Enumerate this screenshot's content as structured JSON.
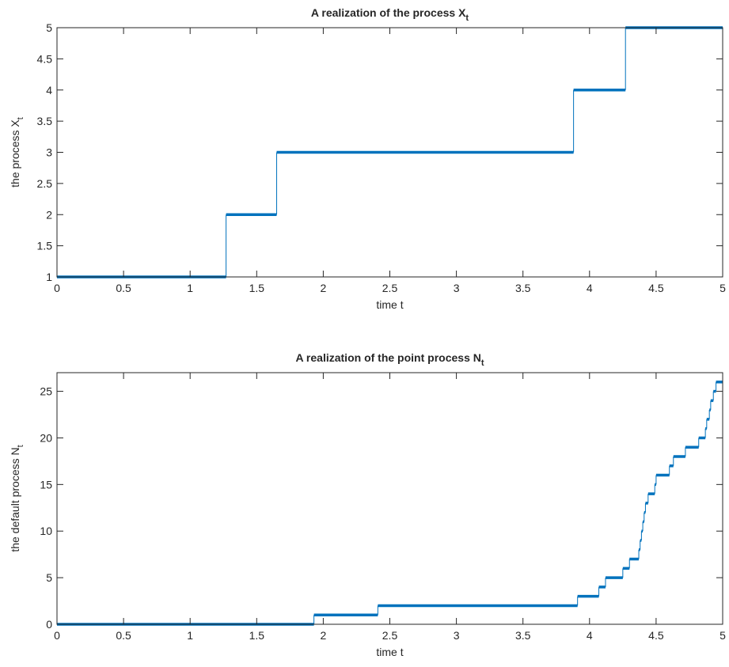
{
  "chart_data": [
    {
      "type": "step",
      "title": {
        "text": "A realization of the process X",
        "sub": "t"
      },
      "xlabel": "time t",
      "ylabel": {
        "text": "the process X",
        "sub": "t"
      },
      "color": "#0072bd",
      "x": [
        0,
        1.27,
        1.65,
        3.88,
        4.27
      ],
      "values": [
        1,
        2,
        3,
        4,
        5
      ],
      "xlim": [
        0,
        5
      ],
      "ylim": [
        1,
        5
      ],
      "xticks": [
        0,
        0.5,
        1,
        1.5,
        2,
        2.5,
        3,
        3.5,
        4,
        4.5,
        5
      ],
      "yticks": [
        1,
        1.5,
        2,
        2.5,
        3,
        3.5,
        4,
        4.5,
        5
      ]
    },
    {
      "type": "step",
      "title": {
        "text": "A realization of the point process N",
        "sub": "t"
      },
      "xlabel": "time t",
      "ylabel": {
        "text": "the default process N",
        "sub": "t"
      },
      "color": "#0072bd",
      "x": [
        0,
        1.93,
        2.41,
        3.91,
        4.07,
        4.12,
        4.25,
        4.3,
        4.37,
        4.38,
        4.39,
        4.4,
        4.41,
        4.42,
        4.44,
        4.49,
        4.5,
        4.6,
        4.63,
        4.72,
        4.82,
        4.87,
        4.88,
        4.9,
        4.91,
        4.93,
        4.95
      ],
      "values": [
        0,
        1,
        2,
        3,
        4,
        5,
        6,
        7,
        8,
        9,
        10,
        11,
        12,
        13,
        14,
        15,
        16,
        17,
        18,
        19,
        20,
        21,
        22,
        23,
        24,
        25,
        26
      ],
      "xlim": [
        0,
        5
      ],
      "ylim": [
        0,
        27
      ],
      "xticks": [
        0,
        0.5,
        1,
        1.5,
        2,
        2.5,
        3,
        3.5,
        4,
        4.5,
        5
      ],
      "yticks": [
        0,
        5,
        10,
        15,
        20,
        25
      ]
    }
  ]
}
